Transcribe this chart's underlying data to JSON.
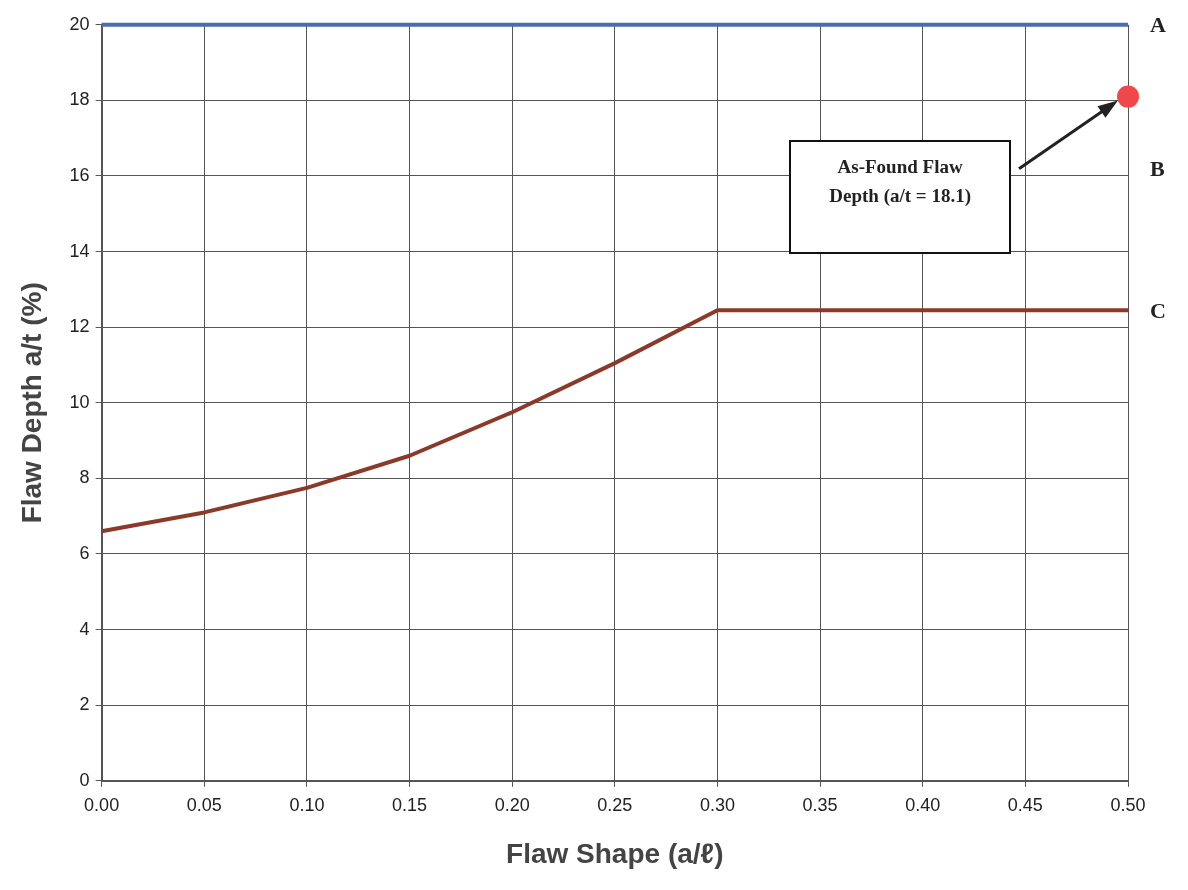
{
  "chart_data": {
    "type": "line",
    "xlabel": "Flaw Shape (a/ℓ)",
    "ylabel": "Flaw Depth a/t (%)",
    "xlim": [
      0,
      0.5
    ],
    "xticks": [
      {
        "value": 0,
        "label": "0.00"
      },
      {
        "value": 0.05,
        "label": "0.05"
      },
      {
        "value": 0.1,
        "label": "0.10"
      },
      {
        "value": 0.15,
        "label": "0.15"
      },
      {
        "value": 0.2,
        "label": "0.20"
      },
      {
        "value": 0.25,
        "label": "0.25"
      },
      {
        "value": 0.3,
        "label": "0.30"
      },
      {
        "value": 0.35,
        "label": "0.35"
      },
      {
        "value": 0.4,
        "label": "0.40"
      },
      {
        "value": 0.45,
        "label": "0.45"
      },
      {
        "value": 0.5,
        "label": "0.50"
      }
    ],
    "ylim": [
      0,
      20
    ],
    "yticks": [
      0,
      2,
      4,
      6,
      8,
      10,
      12,
      14,
      16,
      18,
      20
    ],
    "grid": true,
    "legend": false,
    "marker": "none",
    "line_style": "solid",
    "series": [
      {
        "name": "A",
        "color": "#4a6db0",
        "x": [
          0,
          0.5
        ],
        "values": [
          20,
          20
        ]
      },
      {
        "name": "C",
        "color": "#8b3a2a",
        "x": [
          0,
          0.05,
          0.1,
          0.15,
          0.2,
          0.25,
          0.3,
          0.5
        ],
        "values": [
          6.6,
          7.1,
          7.75,
          8.6,
          9.75,
          11.05,
          12.45,
          12.45
        ]
      },
      {
        "type": "scatter",
        "color": "#f04848",
        "x": [
          0.5
        ],
        "values": [
          18.1
        ],
        "marker": "circle"
      }
    ],
    "annotations": [
      "B",
      "As-Found Flaw Depth (a/t = 18.1)"
    ]
  }
}
